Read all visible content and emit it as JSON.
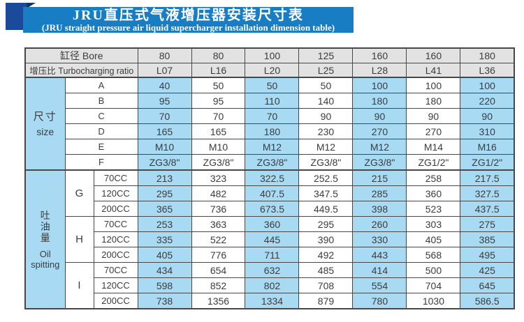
{
  "colors": {
    "banner_blue": "#187dc3",
    "accent_navy": "#1b4a9b",
    "fold_navy": "#10336e",
    "cell_blue": "#a9daf3",
    "header_gray": "#e2e2e2",
    "grid": "#474747",
    "text": "#3c3c3c"
  },
  "banner": {
    "title_zh": "JRU直压式气液增压器安装尺寸表",
    "title_en": "(JRU straight pressure air liquid supercharger installation dimension table)"
  },
  "table": {
    "header_rows": [
      {
        "label": "缸径  Bore",
        "values": [
          "80",
          "80",
          "100",
          "125",
          "160",
          "160",
          "180"
        ]
      },
      {
        "label": "增压比 Turbocharging ratio",
        "values": [
          "L07",
          "L16",
          "L20",
          "L25",
          "L28",
          "L41",
          "L36"
        ]
      }
    ],
    "size_section": {
      "label_lines": [
        "尺寸",
        "size"
      ],
      "rows": [
        {
          "label": "A",
          "values": [
            "40",
            "50",
            "50",
            "50",
            "100",
            "100",
            "100"
          ]
        },
        {
          "label": "B",
          "values": [
            "95",
            "95",
            "110",
            "140",
            "180",
            "180",
            "220"
          ]
        },
        {
          "label": "C",
          "values": [
            "70",
            "70",
            "70",
            "90",
            "90",
            "90",
            "90"
          ]
        },
        {
          "label": "D",
          "values": [
            "165",
            "165",
            "180",
            "230",
            "270",
            "270",
            "310"
          ]
        },
        {
          "label": "E",
          "values": [
            "M10",
            "M10",
            "M12",
            "M12",
            "M12",
            "M14",
            "M16"
          ]
        },
        {
          "label": "F",
          "values": [
            "ZG3/8\"",
            "ZG3/8\"",
            "ZG3/8\"",
            "ZG3/8\"",
            "ZG3/8\"",
            "ZG1/2\"",
            "ZG1/2\""
          ]
        }
      ]
    },
    "oil_section": {
      "label_lines": [
        "吐",
        "油",
        "量",
        "Oil",
        "spitting"
      ],
      "groups": [
        {
          "label": "G",
          "rows": [
            {
              "label": "70CC",
              "values": [
                "213",
                "323",
                "322.5",
                "252.5",
                "215",
                "258",
                "217.5"
              ]
            },
            {
              "label": "120CC",
              "values": [
                "295",
                "482",
                "407.5",
                "347.5",
                "285",
                "360",
                "327.5"
              ]
            },
            {
              "label": "200CC",
              "values": [
                "365",
                "736",
                "673.5",
                "449.5",
                "398",
                "523",
                "437.5"
              ]
            }
          ]
        },
        {
          "label": "H",
          "rows": [
            {
              "label": "70CC",
              "values": [
                "253",
                "363",
                "360",
                "295",
                "260",
                "303",
                "275"
              ]
            },
            {
              "label": "120CC",
              "values": [
                "335",
                "522",
                "445",
                "390",
                "330",
                "405",
                "385"
              ]
            },
            {
              "label": "200CC",
              "values": [
                "405",
                "776",
                "711",
                "492",
                "443",
                "568",
                "495"
              ]
            }
          ]
        },
        {
          "label": "I",
          "rows": [
            {
              "label": "70CC",
              "values": [
                "434",
                "654",
                "632",
                "485",
                "414",
                "500",
                "425"
              ]
            },
            {
              "label": "120CC",
              "values": [
                "598",
                "852",
                "802",
                "708",
                "554",
                "704",
                "645"
              ]
            },
            {
              "label": "200CC",
              "values": [
                "738",
                "1356",
                "1334",
                "879",
                "780",
                "1030",
                "586.5"
              ]
            }
          ]
        }
      ]
    }
  }
}
